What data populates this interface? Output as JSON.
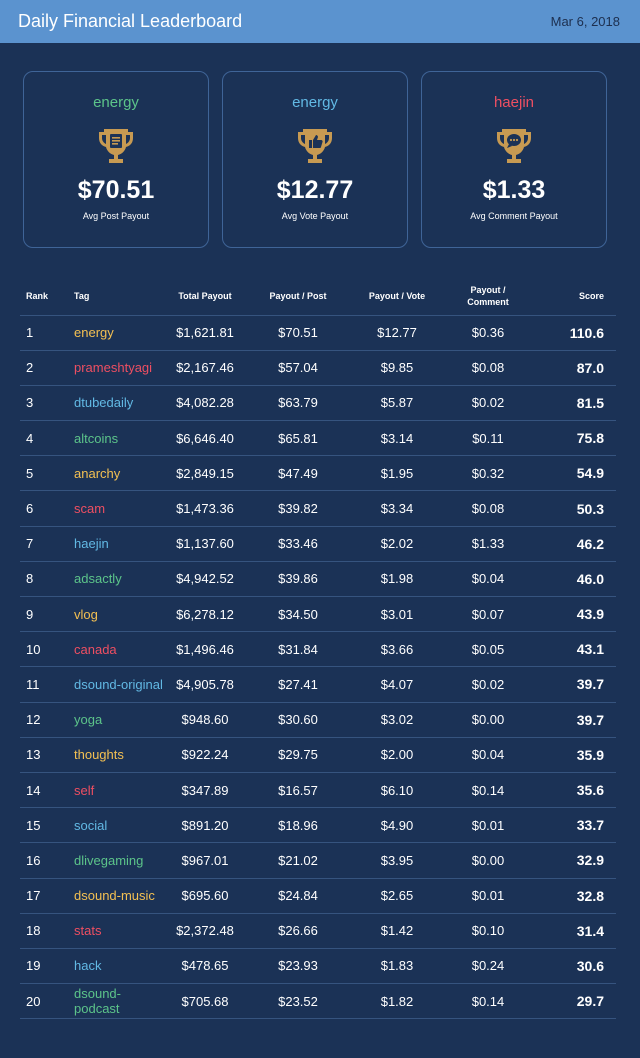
{
  "header": {
    "title": "Daily Financial Leaderboard",
    "date": "Mar 6, 2018"
  },
  "colors": {
    "green": "#5cc48a",
    "blue": "#62b9e4",
    "red": "#ee4f62",
    "yellow": "#f3c052",
    "trophy": "#c79a52"
  },
  "cards": [
    {
      "tag": "energy",
      "color": "#5cc48a",
      "icon": "document-icon",
      "value": "$70.51",
      "label": "Avg Post Payout"
    },
    {
      "tag": "energy",
      "color": "#62b9e4",
      "icon": "thumbs-up-icon",
      "value": "$12.77",
      "label": "Avg Vote Payout"
    },
    {
      "tag": "haejin",
      "color": "#ee4f62",
      "icon": "comment-icon",
      "value": "$1.33",
      "label": "Avg Comment Payout"
    }
  ],
  "table": {
    "headers": {
      "rank": "Rank",
      "tag": "Tag",
      "total": "Total Payout",
      "ppp": "Payout / Post",
      "ppv": "Payout / Vote",
      "ppc_1": "Payout /",
      "ppc_2": "Comment",
      "score": "Score"
    },
    "rows": [
      {
        "rank": "1",
        "tag": "energy",
        "color": "#f3c052",
        "total": "$1,621.81",
        "ppp": "$70.51",
        "ppv": "$12.77",
        "ppc": "$0.36",
        "score": "110.6"
      },
      {
        "rank": "2",
        "tag": "prameshtyagi",
        "color": "#ee4f62",
        "total": "$2,167.46",
        "ppp": "$57.04",
        "ppv": "$9.85",
        "ppc": "$0.08",
        "score": "87.0"
      },
      {
        "rank": "3",
        "tag": "dtubedaily",
        "color": "#62b9e4",
        "total": "$4,082.28",
        "ppp": "$63.79",
        "ppv": "$5.87",
        "ppc": "$0.02",
        "score": "81.5"
      },
      {
        "rank": "4",
        "tag": "altcoins",
        "color": "#5cc48a",
        "total": "$6,646.40",
        "ppp": "$65.81",
        "ppv": "$3.14",
        "ppc": "$0.11",
        "score": "75.8"
      },
      {
        "rank": "5",
        "tag": "anarchy",
        "color": "#f3c052",
        "total": "$2,849.15",
        "ppp": "$47.49",
        "ppv": "$1.95",
        "ppc": "$0.32",
        "score": "54.9"
      },
      {
        "rank": "6",
        "tag": "scam",
        "color": "#ee4f62",
        "total": "$1,473.36",
        "ppp": "$39.82",
        "ppv": "$3.34",
        "ppc": "$0.08",
        "score": "50.3"
      },
      {
        "rank": "7",
        "tag": "haejin",
        "color": "#62b9e4",
        "total": "$1,137.60",
        "ppp": "$33.46",
        "ppv": "$2.02",
        "ppc": "$1.33",
        "score": "46.2"
      },
      {
        "rank": "8",
        "tag": "adsactly",
        "color": "#5cc48a",
        "total": "$4,942.52",
        "ppp": "$39.86",
        "ppv": "$1.98",
        "ppc": "$0.04",
        "score": "46.0"
      },
      {
        "rank": "9",
        "tag": "vlog",
        "color": "#f3c052",
        "total": "$6,278.12",
        "ppp": "$34.50",
        "ppv": "$3.01",
        "ppc": "$0.07",
        "score": "43.9"
      },
      {
        "rank": "10",
        "tag": "canada",
        "color": "#ee4f62",
        "total": "$1,496.46",
        "ppp": "$31.84",
        "ppv": "$3.66",
        "ppc": "$0.05",
        "score": "43.1"
      },
      {
        "rank": "11",
        "tag": "dsound-original",
        "color": "#62b9e4",
        "total": "$4,905.78",
        "ppp": "$27.41",
        "ppv": "$4.07",
        "ppc": "$0.02",
        "score": "39.7"
      },
      {
        "rank": "12",
        "tag": "yoga",
        "color": "#5cc48a",
        "total": "$948.60",
        "ppp": "$30.60",
        "ppv": "$3.02",
        "ppc": "$0.00",
        "score": "39.7"
      },
      {
        "rank": "13",
        "tag": "thoughts",
        "color": "#f3c052",
        "total": "$922.24",
        "ppp": "$29.75",
        "ppv": "$2.00",
        "ppc": "$0.04",
        "score": "35.9"
      },
      {
        "rank": "14",
        "tag": "self",
        "color": "#ee4f62",
        "total": "$347.89",
        "ppp": "$16.57",
        "ppv": "$6.10",
        "ppc": "$0.14",
        "score": "35.6"
      },
      {
        "rank": "15",
        "tag": "social",
        "color": "#62b9e4",
        "total": "$891.20",
        "ppp": "$18.96",
        "ppv": "$4.90",
        "ppc": "$0.01",
        "score": "33.7"
      },
      {
        "rank": "16",
        "tag": "dlivegaming",
        "color": "#5cc48a",
        "total": "$967.01",
        "ppp": "$21.02",
        "ppv": "$3.95",
        "ppc": "$0.00",
        "score": "32.9"
      },
      {
        "rank": "17",
        "tag": "dsound-music",
        "color": "#f3c052",
        "total": "$695.60",
        "ppp": "$24.84",
        "ppv": "$2.65",
        "ppc": "$0.01",
        "score": "32.8"
      },
      {
        "rank": "18",
        "tag": "stats",
        "color": "#ee4f62",
        "total": "$2,372.48",
        "ppp": "$26.66",
        "ppv": "$1.42",
        "ppc": "$0.10",
        "score": "31.4"
      },
      {
        "rank": "19",
        "tag": "hack",
        "color": "#62b9e4",
        "total": "$478.65",
        "ppp": "$23.93",
        "ppv": "$1.83",
        "ppc": "$0.24",
        "score": "30.6"
      },
      {
        "rank": "20",
        "tag": "dsound-podcast",
        "color": "#5cc48a",
        "total": "$705.68",
        "ppp": "$23.52",
        "ppv": "$1.82",
        "ppc": "$0.14",
        "score": "29.7"
      }
    ]
  }
}
